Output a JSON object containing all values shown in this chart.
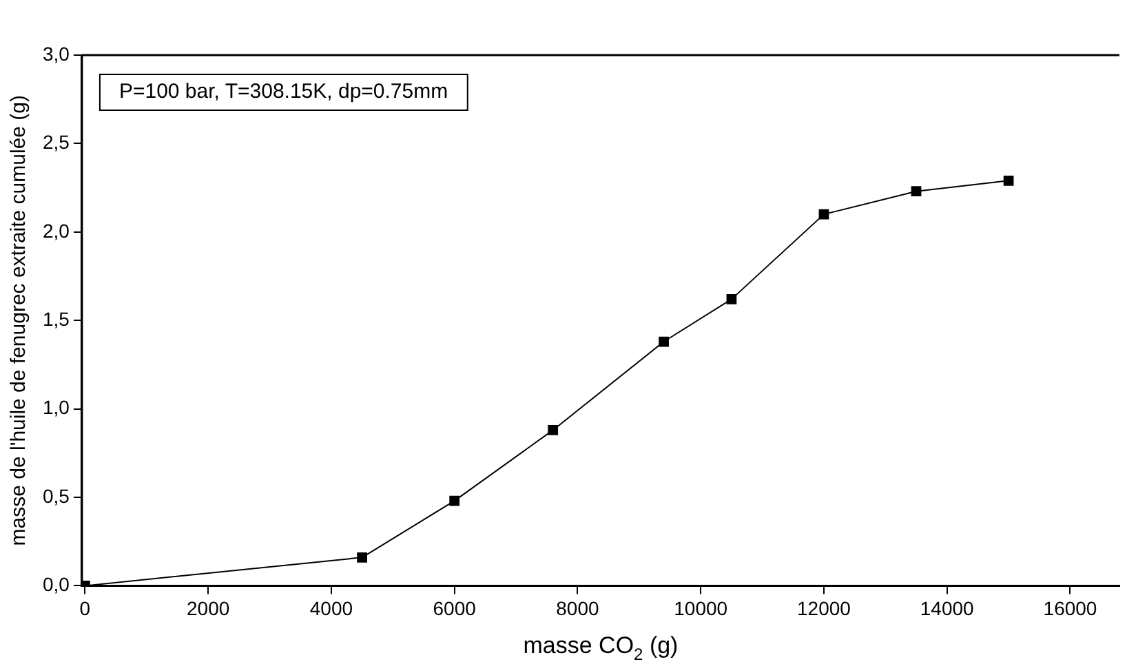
{
  "chart_data": {
    "type": "line",
    "xlabel": "masse CO$_{2}$ (g)",
    "ylabel": "masse de l'huile de fenugrec extraite cumulée (g)",
    "annotations": [
      "P=100 bar, T=308.15K, dp=0.75mm"
    ],
    "x": [
      0,
      4500,
      6000,
      7600,
      9400,
      10500,
      12000,
      13500,
      15000
    ],
    "series": [
      {
        "color": "#000000",
        "values": [
          0,
          0.16,
          0.48,
          0.88,
          1.38,
          1.62,
          2.1,
          2.23,
          2.29
        ]
      }
    ],
    "xlim": [
      -50,
      16800
    ],
    "xticks": [
      0,
      2000,
      4000,
      6000,
      8000,
      10000,
      12000,
      14000,
      16000
    ],
    "ylim": [
      0,
      3
    ],
    "yticks": [
      {
        "value": 0,
        "label": "0,0"
      },
      {
        "value": 0.5,
        "label": "0,5"
      },
      {
        "value": 1,
        "label": "1,0"
      },
      {
        "value": 1.5,
        "label": "1,5"
      },
      {
        "value": 2,
        "label": "2,0"
      },
      {
        "value": 2.5,
        "label": "2,5"
      },
      {
        "value": 3,
        "label": "3,0"
      }
    ],
    "grid": false,
    "legend": false,
    "marker": "square",
    "line_style": "solid"
  }
}
